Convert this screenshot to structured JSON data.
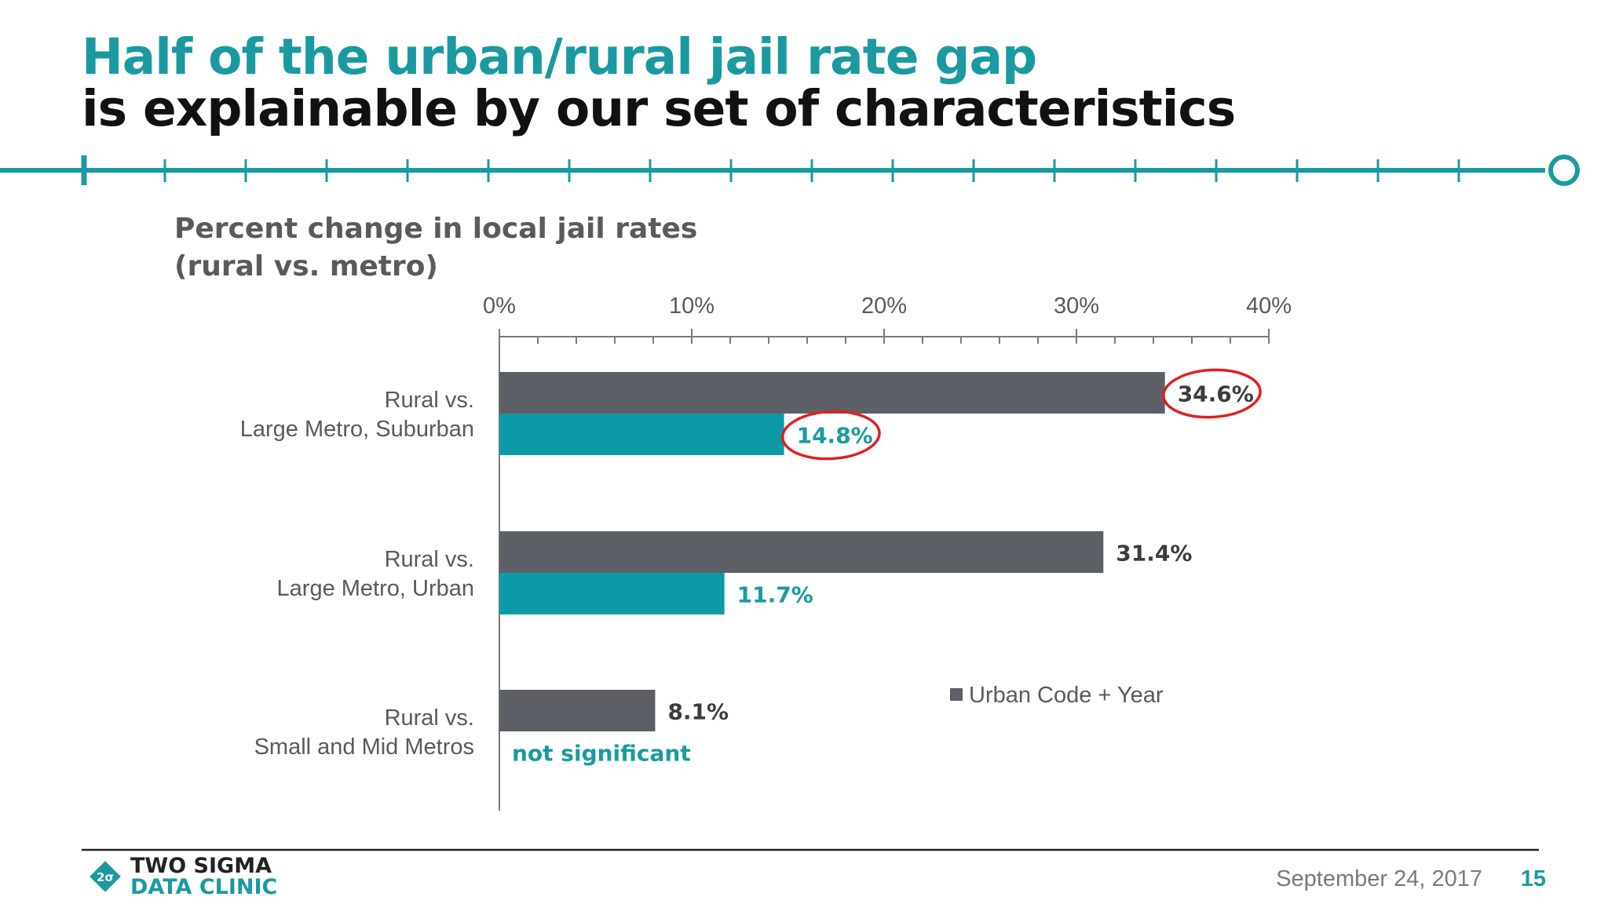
{
  "header": {
    "title_line1": "Half of the urban/rural jail rate gap",
    "title_line2": "is explainable by our set of characteristics"
  },
  "footer": {
    "date": "September 24, 2017",
    "page_number": "15",
    "logo_line1": "TWO SIGMA",
    "logo_line2": "DATA CLINIC"
  },
  "colors": {
    "accent": "#1a9aa0",
    "dark_bar": "#5d5f67",
    "teal_bar": "#0c9ba6",
    "highlight_circle": "#e02020"
  },
  "chart_data": {
    "type": "bar",
    "orientation": "horizontal",
    "title": "Percent change in local jail rates\n(rural vs. metro)",
    "categories": [
      "Rural vs.\nLarge Metro, Suburban",
      "Rural vs.\nLarge Metro, Urban",
      "Rural vs.\nSmall and Mid Metros"
    ],
    "series": [
      {
        "name": "Urban Code + Year",
        "values": [
          34.6,
          31.4,
          8.1
        ],
        "labels": [
          "34.6%",
          "31.4%",
          "8.1%"
        ]
      },
      {
        "values": [
          14.8,
          11.7,
          null
        ],
        "labels": [
          "14.8%",
          "11.7%",
          "not significant"
        ]
      }
    ],
    "xlim": [
      0,
      40
    ],
    "x_ticks": [
      "0%",
      "10%",
      "20%",
      "30%",
      "40%"
    ],
    "legend_position": "bottom-right",
    "grid": false,
    "circled_labels": [
      "34.6%",
      "14.8%"
    ]
  }
}
